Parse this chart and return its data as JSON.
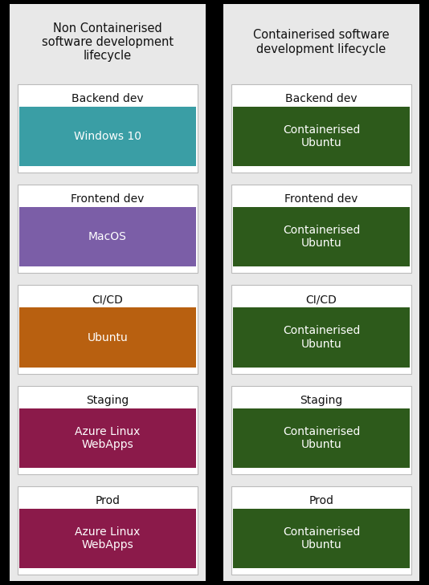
{
  "background_color": "#000000",
  "panel_bg": "#e8e8e8",
  "panel_border": "#cccccc",
  "white_box_bg": "#ffffff",
  "white_box_border": "#bbbbbb",
  "figsize": [
    5.34,
    7.29
  ],
  "dpi": 100,
  "left_title": "Non Containerised\nsoftware development\nlifecycle",
  "right_title": "Containerised software\ndevelopment lifecycle",
  "stages": [
    "Backend dev",
    "Frontend dev",
    "CI/CD",
    "Staging",
    "Prod"
  ],
  "left_labels": [
    "Windows 10",
    "MacOS",
    "Ubuntu",
    "Azure Linux\nWebApps",
    "Azure Linux\nWebApps"
  ],
  "left_colors": [
    "#3a9ea5",
    "#7b5ea7",
    "#b86010",
    "#8b1a4a",
    "#8b1a4a"
  ],
  "right_label": "Containerised\nUbuntu",
  "right_color": "#2d5a1b",
  "text_color_light": "#ffffff",
  "text_color_dark": "#111111",
  "title_fontsize": 10.5,
  "stage_fontsize": 10,
  "label_fontsize": 10
}
